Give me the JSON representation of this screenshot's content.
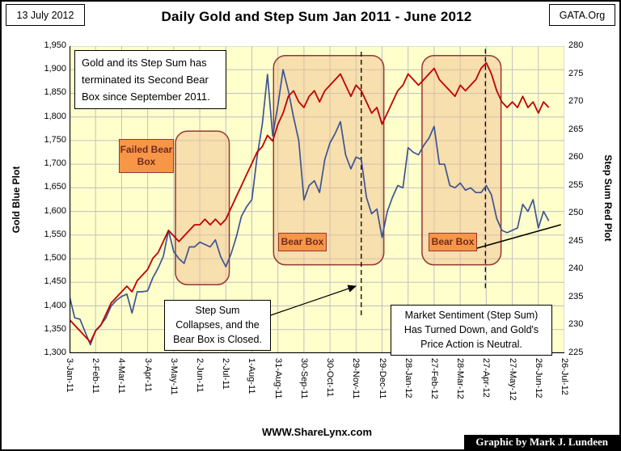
{
  "header": {
    "date_box": "13 July 2012",
    "title": "Daily Gold and Step Sum Jan 2011 - June 2012",
    "source_box": "GATA.Org"
  },
  "footer": {
    "website": "WWW.ShareLynx.com",
    "credit": "Graphic by Mark J. Lundeen"
  },
  "annotations": {
    "note_top_left": "Gold and its Step Sum has terminated its Second Bear Box since September 2011.",
    "failed_bear_box_label": "Failed Bear Box",
    "bear_box_label": "Bear Box",
    "note_step_sum": "Step Sum Collapses, and the Bear Box is Closed.",
    "note_sentiment": "Market Sentiment (Step Sum) Has Turned Down, and Gold's Price Action is Neutral."
  },
  "colors": {
    "plot_bg": "#FFFFCC",
    "grid": "#C0C0C0",
    "gold_line": "#3D5493",
    "step_sum_line": "#C00000",
    "bear_box_fill": "#F0C08F",
    "bear_box_border": "#963634",
    "label_fill": "#F79646",
    "label_text": "#6E2C1F"
  },
  "chart_data": {
    "type": "line",
    "title": "Daily Gold and Step Sum Jan 2011 - June 2012",
    "x_start_label": "3-Jan-11",
    "x_total_days": 570,
    "x_tick_days": [
      0,
      30,
      60,
      90,
      120,
      150,
      180,
      210,
      240,
      270,
      300,
      330,
      360,
      390,
      420,
      450,
      480,
      510,
      540,
      570
    ],
    "x_tick_labels": [
      "3-Jan-11",
      "2-Feb-11",
      "4-Mar-11",
      "3-Apr-11",
      "3-May-11",
      "2-Jun-11",
      "2-Jul-11",
      "1-Aug-11",
      "31-Aug-11",
      "30-Sep-11",
      "30-Oct-11",
      "29-Nov-11",
      "29-Dec-11",
      "28-Jan-12",
      "27-Feb-12",
      "28-Mar-12",
      "27-Apr-12",
      "27-May-12",
      "26-Jun-12",
      "26-Jul-12"
    ],
    "left_axis": {
      "label": "Gold Blue Plot",
      "min": 1300,
      "max": 1950,
      "tick_step": 50,
      "tick_labels": [
        "1,950",
        "1,900",
        "1,850",
        "1,800",
        "1,750",
        "1,700",
        "1,650",
        "1,600",
        "1,550",
        "1,500",
        "1,450",
        "1,400",
        "1,350",
        "1,300"
      ]
    },
    "right_axis": {
      "label": "Step Sum Red Plot",
      "min": 225,
      "max": 280,
      "tick_step": 5,
      "tick_labels": [
        "280",
        "275",
        "270",
        "265",
        "260",
        "255",
        "250",
        "245",
        "240",
        "235",
        "230",
        "225"
      ]
    },
    "series": [
      {
        "name": "Gold (blue plot, left scale)",
        "axis": "left",
        "x_step_days": 6,
        "values": [
          1420,
          1375,
          1372,
          1345,
          1318,
          1348,
          1360,
          1375,
          1400,
          1412,
          1420,
          1425,
          1385,
          1430,
          1430,
          1432,
          1460,
          1480,
          1505,
          1560,
          1515,
          1500,
          1490,
          1525,
          1525,
          1535,
          1530,
          1525,
          1540,
          1505,
          1483,
          1510,
          1545,
          1590,
          1610,
          1625,
          1715,
          1785,
          1890,
          1760,
          1825,
          1900,
          1855,
          1800,
          1750,
          1624,
          1655,
          1665,
          1640,
          1710,
          1745,
          1765,
          1790,
          1720,
          1690,
          1715,
          1710,
          1630,
          1595,
          1605,
          1545,
          1600,
          1630,
          1655,
          1650,
          1735,
          1725,
          1720,
          1740,
          1755,
          1780,
          1700,
          1700,
          1655,
          1650,
          1660,
          1645,
          1650,
          1640,
          1640,
          1655,
          1635,
          1585,
          1560,
          1555,
          1560,
          1565,
          1615,
          1600,
          1625,
          1565,
          1600,
          1580
        ]
      },
      {
        "name": "Step Sum (red plot, right scale)",
        "axis": "right",
        "x_step_days": 6,
        "values": [
          231,
          230,
          229,
          228,
          227,
          229,
          230,
          232,
          234,
          235,
          236,
          237,
          236,
          238,
          239,
          240,
          242,
          243,
          245,
          247,
          246,
          245,
          246,
          247,
          248,
          248,
          249,
          248,
          249,
          248,
          249,
          251,
          253,
          255,
          257,
          259,
          261,
          262,
          264,
          263,
          266,
          268,
          271,
          272,
          270,
          269,
          271,
          272,
          270,
          272,
          273,
          274,
          275,
          273,
          271,
          273,
          272,
          270,
          268,
          269,
          266,
          268,
          270,
          272,
          273,
          275,
          274,
          273,
          274,
          275,
          276,
          274,
          273,
          272,
          271,
          273,
          272,
          273,
          274,
          276,
          277,
          275,
          272,
          270,
          269,
          270,
          269,
          271,
          269,
          270,
          268,
          270,
          269
        ]
      }
    ],
    "bear_boxes": [
      {
        "name": "failed-bear-box",
        "day_start": 122,
        "day_end": 184,
        "gold_low": 1445,
        "gold_high": 1770
      },
      {
        "name": "bear-box-1",
        "day_start": 235,
        "day_end": 362,
        "gold_low": 1487,
        "gold_high": 1930
      },
      {
        "name": "bear-box-2",
        "day_start": 406,
        "day_end": 497,
        "gold_low": 1487,
        "gold_high": 1930
      }
    ],
    "dashed_lines": [
      {
        "day": 336,
        "gold_top": 1938,
        "gold_bottom": 1380
      },
      {
        "day": 479,
        "gold_top": 1944,
        "gold_bottom": 1435
      }
    ],
    "trend_line": {
      "day_start": 465,
      "gold_start": 1520,
      "day_end": 566,
      "gold_end": 1572
    }
  }
}
